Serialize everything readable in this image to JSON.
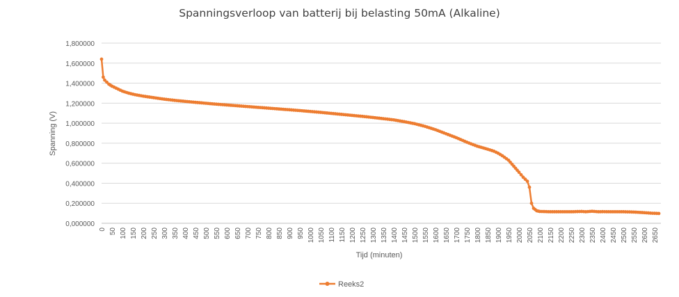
{
  "chart_data": {
    "type": "line",
    "title": "Spanningsverloop van batterij bij belasting 50mA (Alkaline)",
    "xlabel": "Tijd (minuten)",
    "ylabel": "Spanning (V)",
    "xlim": [
      0,
      2680
    ],
    "ylim": [
      0,
      1.8
    ],
    "yticks": [
      "0,000000",
      "0,200000",
      "0,400000",
      "0,600000",
      "0,800000",
      "1,000000",
      "1,200000",
      "1,400000",
      "1,600000",
      "1,800000"
    ],
    "xtick_step": 50,
    "grid": "horizontal",
    "legend_position": "bottom",
    "colors": {
      "series": "#ED7D31",
      "grid": "#D9D9D9",
      "text": "#595959",
      "title": "#404040"
    },
    "series": [
      {
        "name": "Reeks2",
        "color": "#ED7D31",
        "points": [
          [
            0,
            1.64
          ],
          [
            8,
            1.46
          ],
          [
            15,
            1.43
          ],
          [
            25,
            1.41
          ],
          [
            35,
            1.39
          ],
          [
            50,
            1.37
          ],
          [
            70,
            1.35
          ],
          [
            100,
            1.32
          ],
          [
            130,
            1.3
          ],
          [
            160,
            1.285
          ],
          [
            200,
            1.27
          ],
          [
            250,
            1.255
          ],
          [
            300,
            1.24
          ],
          [
            350,
            1.228
          ],
          [
            400,
            1.218
          ],
          [
            450,
            1.208
          ],
          [
            500,
            1.199
          ],
          [
            550,
            1.19
          ],
          [
            600,
            1.182
          ],
          [
            650,
            1.174
          ],
          [
            700,
            1.166
          ],
          [
            750,
            1.158
          ],
          [
            800,
            1.15
          ],
          [
            850,
            1.142
          ],
          [
            900,
            1.134
          ],
          [
            950,
            1.126
          ],
          [
            1000,
            1.117
          ],
          [
            1050,
            1.108
          ],
          [
            1100,
            1.098
          ],
          [
            1150,
            1.088
          ],
          [
            1200,
            1.078
          ],
          [
            1250,
            1.068
          ],
          [
            1300,
            1.057
          ],
          [
            1350,
            1.045
          ],
          [
            1400,
            1.033
          ],
          [
            1450,
            1.015
          ],
          [
            1500,
            0.995
          ],
          [
            1550,
            0.968
          ],
          [
            1600,
            0.935
          ],
          [
            1650,
            0.895
          ],
          [
            1700,
            0.855
          ],
          [
            1750,
            0.81
          ],
          [
            1800,
            0.77
          ],
          [
            1850,
            0.74
          ],
          [
            1880,
            0.72
          ],
          [
            1900,
            0.7
          ],
          [
            1920,
            0.675
          ],
          [
            1950,
            0.63
          ],
          [
            1975,
            0.57
          ],
          [
            2000,
            0.51
          ],
          [
            2020,
            0.46
          ],
          [
            2040,
            0.42
          ],
          [
            2050,
            0.36
          ],
          [
            2060,
            0.2
          ],
          [
            2070,
            0.15
          ],
          [
            2085,
            0.125
          ],
          [
            2100,
            0.118
          ],
          [
            2150,
            0.115
          ],
          [
            2200,
            0.115
          ],
          [
            2250,
            0.115
          ],
          [
            2300,
            0.118
          ],
          [
            2320,
            0.115
          ],
          [
            2350,
            0.12
          ],
          [
            2380,
            0.115
          ],
          [
            2400,
            0.116
          ],
          [
            2450,
            0.115
          ],
          [
            2500,
            0.115
          ],
          [
            2550,
            0.112
          ],
          [
            2600,
            0.106
          ],
          [
            2640,
            0.1
          ],
          [
            2670,
            0.098
          ]
        ]
      }
    ]
  }
}
